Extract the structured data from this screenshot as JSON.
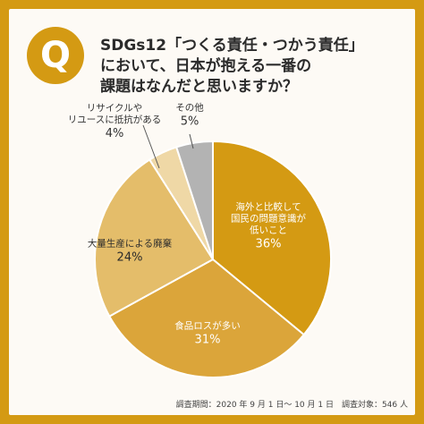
{
  "question": {
    "badge": "Q",
    "lines": [
      "SDGs12「つくる責任・つかう責任」",
      "において、日本が抱える一番の",
      "課題はなんだと思いますか？"
    ]
  },
  "note": "調査期間：2020 年 9 月 1 日〜 10 月 1 日　調査対象：546 人",
  "colors": {
    "frame": "#d49a13",
    "card": "#fdfaf5",
    "slices": [
      "#d49a13",
      "#dba53a",
      "#e4bd6a",
      "#efd8a6",
      "#b3b3b3"
    ]
  },
  "chart_data": {
    "type": "pie",
    "unit": "%",
    "slices": [
      {
        "label": [
          "海外と比較して",
          "国民の問題意識が",
          "低いこと"
        ],
        "value": 36,
        "value_label": "36%"
      },
      {
        "label": [
          "食品ロスが多い"
        ],
        "value": 31,
        "value_label": "31%"
      },
      {
        "label": [
          "大量生産による廃棄"
        ],
        "value": 24,
        "value_label": "24%"
      },
      {
        "label": [
          "リサイクルや",
          "リユースに抵抗がある"
        ],
        "value": 4,
        "value_label": "4%"
      },
      {
        "label": [
          "その他"
        ],
        "value": 5,
        "value_label": "5%"
      }
    ]
  }
}
